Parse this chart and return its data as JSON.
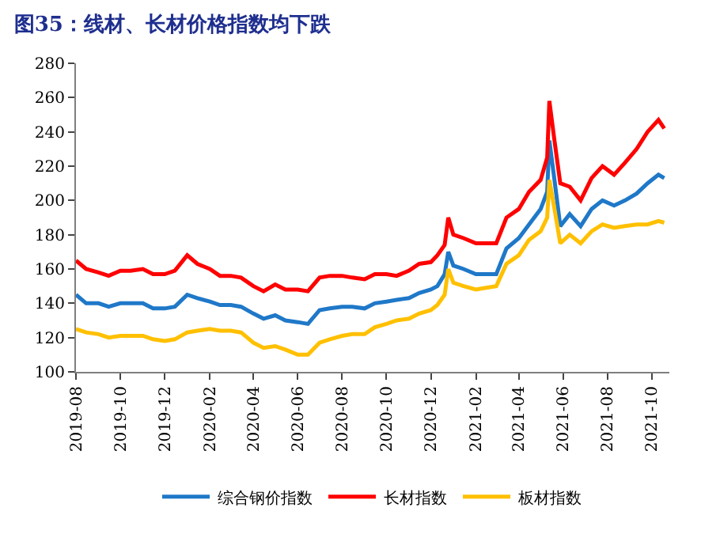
{
  "chart_data": {
    "type": "line",
    "title": "图35：线材、长材价格指数均下跌",
    "x": [
      "2019-08-01",
      "2019-08-15",
      "2019-09-01",
      "2019-09-15",
      "2019-10-01",
      "2019-10-15",
      "2019-11-01",
      "2019-11-15",
      "2019-12-01",
      "2019-12-15",
      "2020-01-01",
      "2020-01-15",
      "2020-02-01",
      "2020-02-15",
      "2020-03-01",
      "2020-03-15",
      "2020-04-01",
      "2020-04-15",
      "2020-05-01",
      "2020-05-15",
      "2020-06-01",
      "2020-06-15",
      "2020-07-01",
      "2020-07-15",
      "2020-08-01",
      "2020-08-15",
      "2020-09-01",
      "2020-09-15",
      "2020-10-01",
      "2020-10-15",
      "2020-11-01",
      "2020-11-15",
      "2020-12-01",
      "2020-12-10",
      "2020-12-20",
      "2020-12-25",
      "2021-01-01",
      "2021-01-15",
      "2021-02-01",
      "2021-02-15",
      "2021-03-01",
      "2021-03-15",
      "2021-04-01",
      "2021-04-15",
      "2021-05-01",
      "2021-05-10",
      "2021-05-13",
      "2021-05-20",
      "2021-05-28",
      "2021-06-10",
      "2021-06-25",
      "2021-07-10",
      "2021-07-25",
      "2021-08-10",
      "2021-08-25",
      "2021-09-10",
      "2021-09-25",
      "2021-10-10",
      "2021-10-18"
    ],
    "series": [
      {
        "name": "综合钢价指数",
        "color": "#1f78c8",
        "values": [
          145,
          140,
          140,
          138,
          140,
          140,
          140,
          137,
          137,
          138,
          145,
          143,
          141,
          139,
          139,
          138,
          134,
          131,
          133,
          130,
          129,
          128,
          136,
          137,
          138,
          138,
          137,
          140,
          141,
          142,
          143,
          146,
          148,
          150,
          157,
          170,
          162,
          160,
          157,
          157,
          157,
          172,
          178,
          186,
          195,
          205,
          235,
          212,
          185,
          192,
          185,
          195,
          200,
          197,
          200,
          204,
          210,
          215,
          213
        ]
      },
      {
        "name": "长材指数",
        "color": "#ff0000",
        "values": [
          165,
          160,
          158,
          156,
          159,
          159,
          160,
          157,
          157,
          159,
          168,
          163,
          160,
          156,
          156,
          155,
          150,
          147,
          151,
          148,
          148,
          147,
          155,
          156,
          156,
          155,
          154,
          157,
          157,
          156,
          159,
          163,
          164,
          168,
          174,
          190,
          180,
          178,
          175,
          175,
          175,
          190,
          195,
          205,
          212,
          225,
          258,
          235,
          210,
          208,
          200,
          213,
          220,
          215,
          222,
          230,
          240,
          247,
          242
        ]
      },
      {
        "name": "板材指数",
        "color": "#ffc000",
        "values": [
          125,
          123,
          122,
          120,
          121,
          121,
          121,
          119,
          118,
          119,
          123,
          124,
          125,
          124,
          124,
          123,
          117,
          114,
          115,
          113,
          110,
          110,
          117,
          119,
          121,
          122,
          122,
          126,
          128,
          130,
          131,
          134,
          136,
          139,
          145,
          160,
          152,
          150,
          148,
          149,
          150,
          163,
          168,
          177,
          182,
          190,
          212,
          195,
          175,
          180,
          175,
          182,
          186,
          184,
          185,
          186,
          186,
          188,
          187
        ]
      }
    ],
    "xlim": [
      "2019-08-01",
      "2021-10-25"
    ],
    "xticks": [
      "2019-08",
      "2019-10",
      "2019-12",
      "2020-02",
      "2020-04",
      "2020-06",
      "2020-08",
      "2020-10",
      "2020-12",
      "2021-02",
      "2021-04",
      "2021-06",
      "2021-08",
      "2021-10"
    ],
    "ylim": [
      100,
      280
    ],
    "yticks": [
      100,
      120,
      140,
      160,
      180,
      200,
      220,
      240,
      260,
      280
    ],
    "legend": "bottom",
    "marker": "none",
    "line_style": "solid"
  }
}
